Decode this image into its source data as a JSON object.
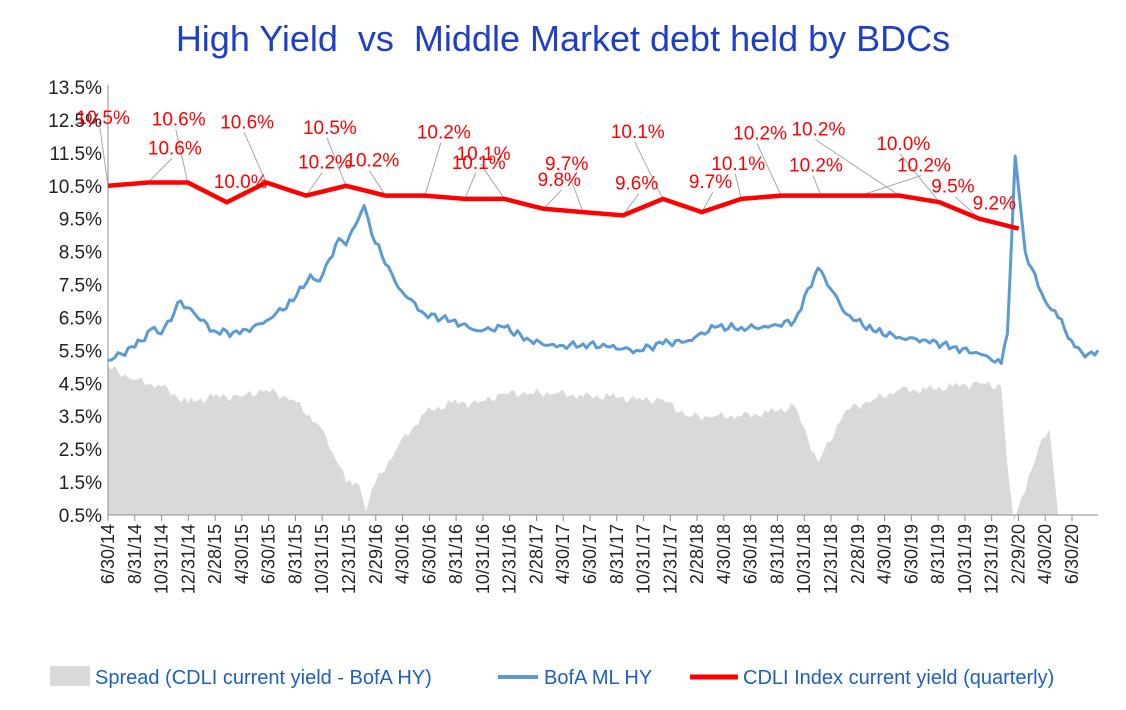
{
  "chart_data": {
    "type": "line",
    "title": "High Yield  vs  Middle Market debt held by BDCs",
    "xlabel": "",
    "ylabel": "",
    "ylim": [
      0.5,
      13.5
    ],
    "yticks": [
      "13.5%",
      "12.5%",
      "11.5%",
      "10.5%",
      "9.5%",
      "8.5%",
      "7.5%",
      "6.5%",
      "5.5%",
      "4.5%",
      "3.5%",
      "2.5%",
      "1.5%",
      "0.5%"
    ],
    "xlim": [
      "2014-06-30",
      "2020-09-30"
    ],
    "xticks": [
      "6/30/14",
      "8/31/14",
      "10/31/14",
      "12/31/14",
      "2/28/15",
      "4/30/15",
      "6/30/15",
      "8/31/15",
      "10/31/15",
      "12/31/15",
      "2/29/16",
      "4/30/16",
      "6/30/16",
      "8/31/16",
      "10/31/16",
      "12/31/16",
      "2/28/17",
      "4/30/17",
      "6/30/17",
      "8/31/17",
      "10/31/17",
      "12/31/17",
      "2/28/18",
      "4/30/18",
      "6/30/18",
      "8/31/18",
      "10/31/18",
      "12/31/18",
      "2/28/19",
      "4/30/19",
      "6/30/19",
      "8/31/19",
      "10/31/19",
      "12/31/19",
      "2/29/20",
      "4/30/20",
      "6/30/20"
    ],
    "grid": false,
    "legend_position": "bottom",
    "colors": {
      "spread": "#d9d9d9",
      "hy": "#5b9bd5",
      "cdli": "#ff0000",
      "title": "#1f3fc9",
      "legend_text": "#1f5fbf"
    },
    "series": [
      {
        "name": "Spread (CDLI current yield - BofA HY)",
        "type": "area",
        "x": [
          "2014-06-30",
          "2014-08-31",
          "2014-10-31",
          "2014-12-31",
          "2015-02-28",
          "2015-04-30",
          "2015-06-30",
          "2015-08-31",
          "2015-10-31",
          "2015-12-15",
          "2015-12-31",
          "2016-01-31",
          "2016-02-15",
          "2016-02-29",
          "2016-04-30",
          "2016-06-30",
          "2016-08-31",
          "2016-10-31",
          "2016-12-31",
          "2017-02-28",
          "2017-04-30",
          "2017-06-30",
          "2017-08-31",
          "2017-10-31",
          "2017-12-31",
          "2018-02-28",
          "2018-04-30",
          "2018-06-30",
          "2018-08-31",
          "2018-10-31",
          "2018-12-24",
          "2019-02-28",
          "2019-04-30",
          "2019-06-30",
          "2019-08-31",
          "2019-10-31",
          "2019-12-31",
          "2020-02-20",
          "2020-03-05",
          "2020-03-20",
          "2020-04-15",
          "2020-05-15",
          "2020-06-10",
          "2020-06-30"
        ],
        "values": [
          5.0,
          4.6,
          4.4,
          3.9,
          4.1,
          4.1,
          4.3,
          4.0,
          3.2,
          2.0,
          1.5,
          1.4,
          0.6,
          1.3,
          2.6,
          3.6,
          3.9,
          3.9,
          4.2,
          4.2,
          4.2,
          4.1,
          4.1,
          4.0,
          4.0,
          3.5,
          3.5,
          3.5,
          3.6,
          3.8,
          2.1,
          3.7,
          4.0,
          4.3,
          4.3,
          4.4,
          4.5,
          4.4,
          2.0,
          0.3,
          1.2,
          2.5,
          3.1,
          0.5
        ]
      },
      {
        "name": "BofA ML HY",
        "type": "line",
        "x": [
          "2014-06-30",
          "2014-08-31",
          "2014-10-15",
          "2014-10-31",
          "2014-12-15",
          "2014-12-31",
          "2015-02-28",
          "2015-04-30",
          "2015-06-30",
          "2015-08-31",
          "2015-10-10",
          "2015-10-31",
          "2015-12-15",
          "2015-12-31",
          "2016-02-11",
          "2016-02-29",
          "2016-04-30",
          "2016-06-30",
          "2016-08-31",
          "2016-10-31",
          "2016-12-31",
          "2017-02-28",
          "2017-04-30",
          "2017-06-30",
          "2017-08-31",
          "2017-10-31",
          "2017-12-31",
          "2018-02-28",
          "2018-04-30",
          "2018-06-30",
          "2018-08-31",
          "2018-10-31",
          "2018-12-24",
          "2019-02-28",
          "2019-04-30",
          "2019-06-30",
          "2019-08-31",
          "2019-10-31",
          "2019-12-31",
          "2020-02-20",
          "2020-03-05",
          "2020-03-23",
          "2020-04-15",
          "2020-04-30",
          "2020-05-31",
          "2020-06-30",
          "2020-07-31",
          "2020-08-31",
          "2020-09-30"
        ],
        "values": [
          5.2,
          5.6,
          6.2,
          6.0,
          7.0,
          6.8,
          6.1,
          6.0,
          6.4,
          7.0,
          7.8,
          7.6,
          8.9,
          8.7,
          9.9,
          9.0,
          7.4,
          6.6,
          6.4,
          6.1,
          6.2,
          5.8,
          5.6,
          5.7,
          5.6,
          5.5,
          5.7,
          5.8,
          6.2,
          6.2,
          6.2,
          6.4,
          8.0,
          6.6,
          6.1,
          5.9,
          5.8,
          5.6,
          5.4,
          5.1,
          6.0,
          11.4,
          8.5,
          8.0,
          7.0,
          6.5,
          5.8,
          5.3,
          5.5
        ]
      },
      {
        "name": "CDLI Index current yield (quarterly)",
        "type": "line",
        "x": [
          "2014-06-30",
          "2014-09-30",
          "2014-12-31",
          "2015-03-31",
          "2015-06-30",
          "2015-09-30",
          "2015-12-31",
          "2016-03-31",
          "2016-06-30",
          "2016-09-30",
          "2016-12-31",
          "2017-03-31",
          "2017-06-30",
          "2017-09-30",
          "2017-12-31",
          "2018-03-31",
          "2018-06-30",
          "2018-09-30",
          "2018-12-31",
          "2019-03-31",
          "2019-06-30",
          "2019-09-30",
          "2019-12-31",
          "2020-03-31"
        ],
        "values": [
          10.5,
          10.6,
          10.6,
          10.0,
          10.6,
          10.2,
          10.5,
          10.2,
          10.2,
          10.1,
          10.1,
          9.8,
          9.7,
          9.6,
          10.1,
          9.7,
          10.1,
          10.2,
          10.2,
          10.2,
          10.2,
          10.0,
          9.5,
          9.2
        ]
      }
    ],
    "annotations": {
      "cdli_labels": [
        "10.5%",
        "10.6%",
        "10.6%",
        "10.0%",
        "10.6%",
        "10.2%",
        "10.5%",
        "10.2%",
        "10.2%",
        "10.1%",
        "10.1%",
        "9.8%",
        "9.7%",
        "9.6%",
        "10.1%",
        "9.7%",
        "10.1%",
        "10.2%",
        "10.2%",
        "10.2%",
        "10.2%",
        "10.0%",
        "9.5%",
        "9.2%"
      ]
    }
  }
}
